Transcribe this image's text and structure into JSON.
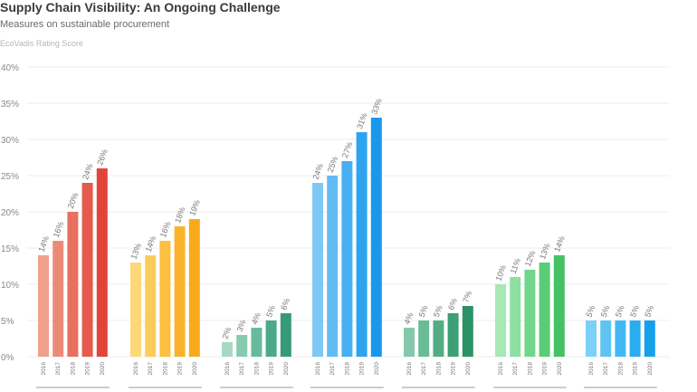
{
  "title": "Supply Chain Visibility: An Ongoing Challenge",
  "subtitle": "Measures on sustainable procurement",
  "chart_data": {
    "type": "bar",
    "title": "Supply Chain Visibility: An Ongoing Challenge",
    "subtitle": "Measures on sustainable procurement",
    "ylabel": "EcoVadis Rating Score",
    "xlabel": "",
    "ylim": [
      0,
      40
    ],
    "yticks": [
      "0%",
      "5%",
      "10%",
      "15%",
      "20%",
      "25%",
      "30%",
      "35%",
      "40%"
    ],
    "grid": true,
    "categories": [
      "2016",
      "2017",
      "2018",
      "2019",
      "2020"
    ],
    "groups": [
      {
        "values": [
          14,
          16,
          20,
          24,
          26
        ],
        "labels": [
          "14%",
          "16%",
          "20%",
          "24%",
          "26%"
        ],
        "colors": [
          "#f0a08c",
          "#ec8a78",
          "#e87060",
          "#e45a4c",
          "#e0443a"
        ]
      },
      {
        "values": [
          13,
          14,
          16,
          18,
          19
        ],
        "labels": [
          "13%",
          "14%",
          "16%",
          "18%",
          "19%"
        ],
        "colors": [
          "#fdd878",
          "#fccc5a",
          "#fbc040",
          "#fab42c",
          "#f8aa1c"
        ]
      },
      {
        "values": [
          2,
          3,
          4,
          5,
          6
        ],
        "labels": [
          "2%",
          "3%",
          "4%",
          "5%",
          "6%"
        ],
        "colors": [
          "#a6d9c4",
          "#86cab0",
          "#68ba9c",
          "#4caa88",
          "#369a76"
        ]
      },
      {
        "values": [
          24,
          25,
          27,
          31,
          33
        ],
        "labels": [
          "24%",
          "25%",
          "27%",
          "31%",
          "33%"
        ],
        "colors": [
          "#7ec8f6",
          "#62bcf4",
          "#46b0f2",
          "#2ea4f0",
          "#1898ec"
        ]
      },
      {
        "values": [
          4,
          5,
          5,
          6,
          7
        ],
        "labels": [
          "4%",
          "5%",
          "5%",
          "6%",
          "7%"
        ],
        "colors": [
          "#86c8ac",
          "#6abb98",
          "#52ad86",
          "#3c9f76",
          "#2a9266"
        ]
      },
      {
        "values": [
          10,
          11,
          12,
          13,
          14
        ],
        "labels": [
          "10%",
          "11%",
          "12%",
          "13%",
          "14%"
        ],
        "colors": [
          "#a6e8b6",
          "#8ce0a0",
          "#72d68a",
          "#5acc76",
          "#44c264"
        ]
      },
      {
        "values": [
          5,
          5,
          5,
          5,
          5
        ],
        "labels": [
          "5%",
          "5%",
          "5%",
          "5%",
          "5%"
        ],
        "colors": [
          "#7cd0f8",
          "#5ec4f6",
          "#42b8f4",
          "#2aacf0",
          "#16a0ec"
        ]
      }
    ]
  }
}
